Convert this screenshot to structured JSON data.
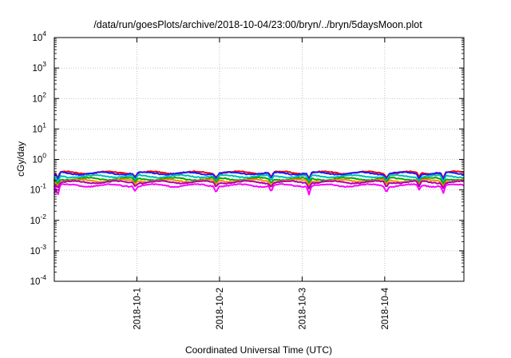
{
  "chart_data": {
    "type": "line",
    "title": "/data/run/goesPlots/archive/2018-10-04/23:00/bryn/../bryn/5daysMoon.plot",
    "xlabel": "Coordinated Universal Time (UTC)",
    "ylabel": "cGy/day",
    "y_scale": "log",
    "ylim": [
      0.0001,
      10000
    ],
    "y_ticks": [
      {
        "base": "10",
        "exp": "-4"
      },
      {
        "base": "10",
        "exp": "-3"
      },
      {
        "base": "10",
        "exp": "-2"
      },
      {
        "base": "10",
        "exp": "-1"
      },
      {
        "base": "10",
        "exp": "0"
      },
      {
        "base": "10",
        "exp": "1"
      },
      {
        "base": "10",
        "exp": "2"
      },
      {
        "base": "10",
        "exp": "3"
      },
      {
        "base": "10",
        "exp": "4"
      }
    ],
    "xlim": [
      "2018-09-30T00:00",
      "2018-10-04T23:00"
    ],
    "x_ticks": [
      "2018-10-1",
      "2018-10-2",
      "2018-10-3",
      "2018-10-4"
    ],
    "x_tick_dates": [
      "2018-10-01T00:00",
      "2018-10-02T00:00",
      "2018-10-03T00:00",
      "2018-10-04T00:00"
    ],
    "grid": true,
    "legend": "none",
    "series_style": "noisy near-constant traces with periodic downward dips",
    "series": [
      {
        "color": "#ff0000",
        "level": 0.37,
        "dips": [
          0.24,
          0.27,
          0.25,
          0.26,
          0.24,
          0.25,
          0.27,
          0.24
        ]
      },
      {
        "color": "#1a1aff",
        "level": 0.35,
        "dips": [
          0.2,
          0.23,
          0.21,
          0.22,
          0.2,
          0.21,
          0.23,
          0.2
        ]
      },
      {
        "color": "#00bbbb",
        "level": 0.28,
        "dips": [
          0.17,
          0.2,
          0.18,
          0.19,
          0.17,
          0.18,
          0.2,
          0.17
        ]
      },
      {
        "color": "#00aa00",
        "level": 0.23,
        "dips": [
          0.15,
          0.17,
          0.16,
          0.16,
          0.15,
          0.16,
          0.17,
          0.15
        ]
      },
      {
        "color": "#ff8800",
        "level": 0.2,
        "dips": [
          0.13,
          0.15,
          0.14,
          0.14,
          0.13,
          0.14,
          0.15,
          0.13
        ]
      },
      {
        "color": "#aa00aa",
        "level": 0.18,
        "dips": [
          0.11,
          0.13,
          0.12,
          0.12,
          0.11,
          0.12,
          0.13,
          0.11
        ]
      },
      {
        "color": "#ff00ff",
        "level": 0.14,
        "dips": [
          0.06,
          0.09,
          0.08,
          0.085,
          0.07,
          0.08,
          0.1,
          0.075
        ]
      }
    ],
    "dip_dates": [
      "2018-09-30T01:00",
      "2018-09-30T23:30",
      "2018-10-01T23:00",
      "2018-10-02T15:00",
      "2018-10-03T02:00",
      "2018-10-04T00:30",
      "2018-10-04T10:00",
      "2018-10-04T17:00"
    ]
  }
}
